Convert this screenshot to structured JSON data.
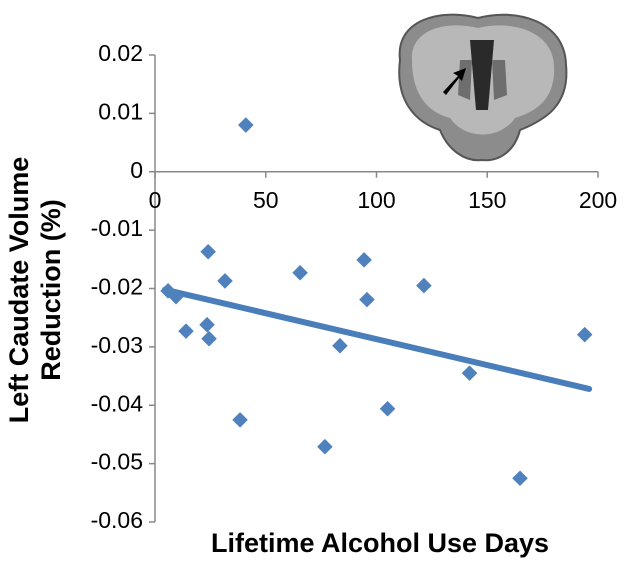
{
  "chart_data": {
    "type": "scatter",
    "xlabel": "Lifetime Alcohol Use Days",
    "ylabel": [
      "Left Caudate Volume",
      "Reduction (%)"
    ],
    "x": [
      41,
      24,
      31.6,
      65.5,
      94.4,
      95.7,
      121.4,
      23.5,
      24.4,
      14,
      5.9,
      9.5,
      83.5,
      194,
      142,
      38.4,
      105,
      76.7,
      164.8
    ],
    "values": [
      0.008,
      -0.0137,
      -0.0187,
      -0.0173,
      -0.0151,
      -0.0219,
      -0.0195,
      -0.0262,
      -0.0286,
      -0.0273,
      -0.0204,
      -0.0214,
      -0.0298,
      -0.0279,
      -0.0345,
      -0.0425,
      -0.0406,
      -0.0471,
      -0.0525
    ],
    "color": "#4f81bd",
    "trendline": {
      "x": [
        4.5,
        196
      ],
      "values": [
        -0.0202,
        -0.0372
      ],
      "color": "#4a7ebb"
    },
    "xlim": [
      0,
      200
    ],
    "xticks": [
      0,
      50,
      100,
      150,
      200
    ],
    "ylim": [
      -0.06,
      0.02
    ],
    "yticks": [
      0.02,
      0.01,
      0,
      -0.01,
      -0.02,
      -0.03,
      -0.04,
      -0.05,
      -0.06
    ]
  }
}
